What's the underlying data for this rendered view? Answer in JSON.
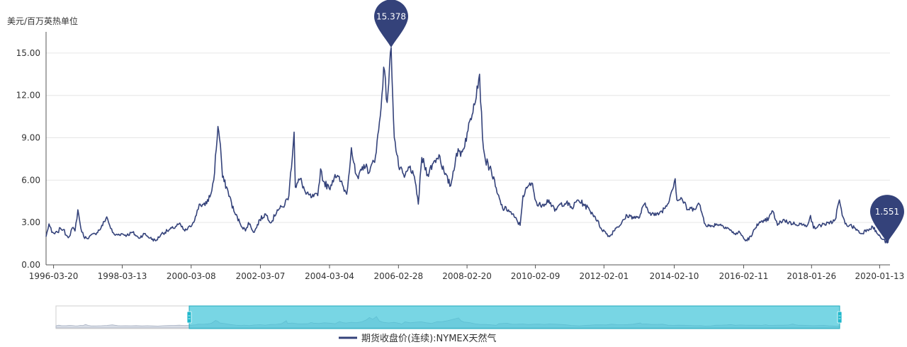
{
  "chart_data": {
    "type": "line",
    "ylabel": "美元/百万英热单位",
    "y_ticks": [
      "0.00",
      "3.00",
      "6.00",
      "9.00",
      "12.00",
      "15.00"
    ],
    "ylim": [
      0,
      16.5
    ],
    "x_ticks": [
      "1996-03-20",
      "1998-03-13",
      "2000-03-08",
      "2002-03-07",
      "2004-03-04",
      "2006-02-28",
      "2008-02-20",
      "2010-02-09",
      "2012-02-01",
      "2014-02-10",
      "2016-02-11",
      "2018-01-26",
      "2020-01-13"
    ],
    "xlim": [
      "1996-01-01",
      "2020-05-01"
    ],
    "grid": true,
    "legend_position": "bottom-center",
    "colors": {
      "line": "#34427a",
      "grid": "#e6e6e6",
      "axis": "#555555",
      "zoom_fill": "#3ec4d8",
      "zoom_border": "#1fa9bc"
    },
    "markers": [
      {
        "type": "max",
        "label": "15.378",
        "x": "2005-12-13",
        "y": 15.378
      },
      {
        "type": "min",
        "label": "1.551",
        "x": "2020-04-01",
        "y": 1.551
      }
    ],
    "zoom_range_percent": [
      17,
      100
    ],
    "series": [
      {
        "name": "期货收盘价(连续):NYMEX天然气",
        "points": [
          [
            "1996-01-01",
            2.0
          ],
          [
            "1996-02-01",
            2.9
          ],
          [
            "1996-03-01",
            2.3
          ],
          [
            "1996-04-01",
            2.2
          ],
          [
            "1996-05-01",
            2.3
          ],
          [
            "1996-06-01",
            2.6
          ],
          [
            "1996-07-01",
            2.5
          ],
          [
            "1996-08-01",
            2.1
          ],
          [
            "1996-09-01",
            2.0
          ],
          [
            "1996-10-01",
            2.6
          ],
          [
            "1996-11-01",
            2.4
          ],
          [
            "1996-12-01",
            3.9
          ],
          [
            "1997-01-01",
            2.6
          ],
          [
            "1997-02-01",
            2.0
          ],
          [
            "1997-03-01",
            1.9
          ],
          [
            "1997-04-01",
            2.0
          ],
          [
            "1997-06-01",
            2.2
          ],
          [
            "1997-08-01",
            2.6
          ],
          [
            "1997-10-01",
            3.4
          ],
          [
            "1997-11-01",
            2.8
          ],
          [
            "1997-12-01",
            2.3
          ],
          [
            "1998-01-01",
            2.1
          ],
          [
            "1998-03-01",
            2.2
          ],
          [
            "1998-05-01",
            2.1
          ],
          [
            "1998-07-01",
            2.3
          ],
          [
            "1998-09-01",
            1.9
          ],
          [
            "1998-11-01",
            2.2
          ],
          [
            "1999-01-01",
            1.9
          ],
          [
            "1999-03-01",
            1.7
          ],
          [
            "1999-05-01",
            2.2
          ],
          [
            "1999-07-01",
            2.4
          ],
          [
            "1999-09-01",
            2.6
          ],
          [
            "1999-11-01",
            2.9
          ],
          [
            "2000-01-01",
            2.4
          ],
          [
            "2000-03-01",
            2.7
          ],
          [
            "2000-05-01",
            3.5
          ],
          [
            "2000-06-01",
            4.3
          ],
          [
            "2000-08-01",
            4.2
          ],
          [
            "2000-10-01",
            5.0
          ],
          [
            "2000-11-01",
            6.0
          ],
          [
            "2000-12-15",
            9.8
          ],
          [
            "2001-01-10",
            8.5
          ],
          [
            "2001-02-01",
            6.2
          ],
          [
            "2001-04-01",
            5.2
          ],
          [
            "2001-06-01",
            3.8
          ],
          [
            "2001-08-01",
            3.0
          ],
          [
            "2001-10-01",
            2.4
          ],
          [
            "2001-11-01",
            3.0
          ],
          [
            "2002-01-01",
            2.3
          ],
          [
            "2002-03-01",
            3.2
          ],
          [
            "2002-05-01",
            3.6
          ],
          [
            "2002-07-01",
            3.0
          ],
          [
            "2002-09-01",
            3.9
          ],
          [
            "2002-11-01",
            4.1
          ],
          [
            "2003-01-01",
            4.9
          ],
          [
            "2003-02-25",
            9.4
          ],
          [
            "2003-03-10",
            5.5
          ],
          [
            "2003-05-01",
            6.1
          ],
          [
            "2003-07-01",
            5.0
          ],
          [
            "2003-09-01",
            4.8
          ],
          [
            "2003-11-01",
            4.9
          ],
          [
            "2003-12-01",
            6.8
          ],
          [
            "2004-01-01",
            5.9
          ],
          [
            "2004-03-01",
            5.4
          ],
          [
            "2004-05-01",
            6.4
          ],
          [
            "2004-07-01",
            5.9
          ],
          [
            "2004-09-01",
            5.0
          ],
          [
            "2004-10-20",
            8.3
          ],
          [
            "2004-12-01",
            6.5
          ],
          [
            "2005-01-01",
            6.1
          ],
          [
            "2005-03-01",
            7.1
          ],
          [
            "2005-05-01",
            6.6
          ],
          [
            "2005-07-01",
            7.7
          ],
          [
            "2005-08-20",
            10.5
          ],
          [
            "2005-09-25",
            14.0
          ],
          [
            "2005-11-01",
            11.5
          ],
          [
            "2005-12-13",
            15.378
          ],
          [
            "2006-01-15",
            9.0
          ],
          [
            "2006-03-01",
            7.0
          ],
          [
            "2006-05-01",
            6.2
          ],
          [
            "2006-07-01",
            7.0
          ],
          [
            "2006-09-01",
            5.6
          ],
          [
            "2006-09-25",
            4.3
          ],
          [
            "2006-11-01",
            7.6
          ],
          [
            "2007-01-01",
            6.4
          ],
          [
            "2007-03-01",
            7.2
          ],
          [
            "2007-05-01",
            7.8
          ],
          [
            "2007-07-01",
            6.4
          ],
          [
            "2007-09-01",
            5.6
          ],
          [
            "2007-11-01",
            7.9
          ],
          [
            "2008-01-01",
            8.0
          ],
          [
            "2008-03-01",
            9.5
          ],
          [
            "2008-05-01",
            11.4
          ],
          [
            "2008-07-01",
            13.5
          ],
          [
            "2008-08-01",
            9.0
          ],
          [
            "2008-09-01",
            7.4
          ],
          [
            "2008-11-01",
            6.7
          ],
          [
            "2009-01-01",
            5.1
          ],
          [
            "2009-03-01",
            4.0
          ],
          [
            "2009-05-01",
            3.9
          ],
          [
            "2009-07-01",
            3.4
          ],
          [
            "2009-09-01",
            2.8
          ],
          [
            "2009-10-01",
            4.9
          ],
          [
            "2009-12-01",
            5.6
          ],
          [
            "2010-01-01",
            5.8
          ],
          [
            "2010-03-01",
            4.2
          ],
          [
            "2010-05-01",
            4.3
          ],
          [
            "2010-07-01",
            4.6
          ],
          [
            "2010-09-01",
            3.8
          ],
          [
            "2010-11-01",
            4.3
          ],
          [
            "2011-01-01",
            4.4
          ],
          [
            "2011-03-01",
            4.0
          ],
          [
            "2011-05-01",
            4.6
          ],
          [
            "2011-07-01",
            4.3
          ],
          [
            "2011-09-01",
            3.9
          ],
          [
            "2011-11-01",
            3.4
          ],
          [
            "2012-01-01",
            2.6
          ],
          [
            "2012-04-01",
            2.0
          ],
          [
            "2012-06-01",
            2.6
          ],
          [
            "2012-08-01",
            2.9
          ],
          [
            "2012-10-01",
            3.5
          ],
          [
            "2012-12-01",
            3.4
          ],
          [
            "2013-02-01",
            3.3
          ],
          [
            "2013-04-01",
            4.3
          ],
          [
            "2013-06-01",
            3.7
          ],
          [
            "2013-08-01",
            3.5
          ],
          [
            "2013-10-01",
            3.8
          ],
          [
            "2013-12-01",
            4.3
          ],
          [
            "2014-02-20",
            6.1
          ],
          [
            "2014-03-10",
            4.6
          ],
          [
            "2014-05-01",
            4.7
          ],
          [
            "2014-07-01",
            3.9
          ],
          [
            "2014-09-01",
            4.0
          ],
          [
            "2014-11-01",
            4.3
          ],
          [
            "2015-01-01",
            2.9
          ],
          [
            "2015-03-01",
            2.7
          ],
          [
            "2015-05-01",
            2.9
          ],
          [
            "2015-07-01",
            2.8
          ],
          [
            "2015-09-01",
            2.6
          ],
          [
            "2015-11-01",
            2.2
          ],
          [
            "2016-01-01",
            2.3
          ],
          [
            "2016-03-01",
            1.7
          ],
          [
            "2016-05-01",
            2.0
          ],
          [
            "2016-07-01",
            2.9
          ],
          [
            "2016-09-01",
            3.0
          ],
          [
            "2016-11-01",
            3.3
          ],
          [
            "2016-12-15",
            3.8
          ],
          [
            "2017-02-01",
            2.8
          ],
          [
            "2017-04-01",
            3.2
          ],
          [
            "2017-06-01",
            3.0
          ],
          [
            "2017-08-01",
            2.9
          ],
          [
            "2017-10-01",
            2.9
          ],
          [
            "2017-12-01",
            2.7
          ],
          [
            "2018-01-15",
            3.5
          ],
          [
            "2018-02-15",
            2.6
          ],
          [
            "2018-04-01",
            2.7
          ],
          [
            "2018-06-01",
            2.9
          ],
          [
            "2018-08-01",
            2.9
          ],
          [
            "2018-10-01",
            3.2
          ],
          [
            "2018-11-15",
            4.6
          ],
          [
            "2018-12-15",
            3.5
          ],
          [
            "2019-01-15",
            2.9
          ],
          [
            "2019-03-01",
            2.8
          ],
          [
            "2019-05-01",
            2.6
          ],
          [
            "2019-07-01",
            2.2
          ],
          [
            "2019-09-01",
            2.5
          ],
          [
            "2019-11-01",
            2.7
          ],
          [
            "2020-01-01",
            2.1
          ],
          [
            "2020-02-15",
            1.8
          ],
          [
            "2020-04-01",
            1.551
          ],
          [
            "2020-04-25",
            1.9
          ]
        ]
      }
    ]
  }
}
